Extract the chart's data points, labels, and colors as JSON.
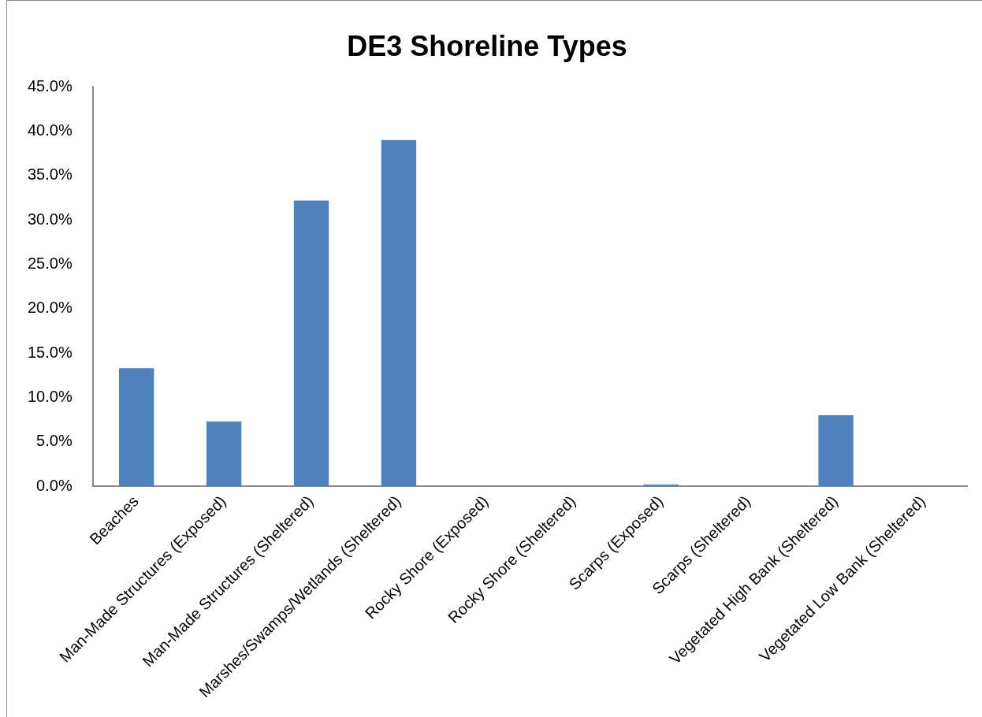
{
  "chart_data": {
    "type": "bar",
    "title": "DE3 Shoreline Types",
    "categories": [
      "Beaches",
      "Man-Made Structures (Exposed)",
      "Man-Made Structures (Sheltered)",
      "Marshes/Swamps/Wetlands (Sheltered)",
      "Rocky Shore (Exposed)",
      "Rocky Shore (Sheltered)",
      "Scarps (Exposed)",
      "Scarps (Sheltered)",
      "Vegetated High Bank (Sheltered)",
      "Vegetated Low Bank (Sheltered)"
    ],
    "values": [
      13.3,
      7.3,
      32.2,
      39.0,
      0,
      0,
      0.2,
      0,
      8.0,
      0
    ],
    "color": "#4f81bd",
    "ylim": [
      0,
      45
    ],
    "yticks": [
      {
        "value": 0,
        "label": "0.0%"
      },
      {
        "value": 5,
        "label": "5.0%"
      },
      {
        "value": 10,
        "label": "10.0%"
      },
      {
        "value": 15,
        "label": "15.0%"
      },
      {
        "value": 20,
        "label": "20.0%"
      },
      {
        "value": 25,
        "label": "25.0%"
      },
      {
        "value": 30,
        "label": "30.0%"
      },
      {
        "value": 35,
        "label": "35.0%"
      },
      {
        "value": 40,
        "label": "40.0%"
      },
      {
        "value": 45,
        "label": "45.0%"
      }
    ],
    "grid": false,
    "legend": false
  }
}
